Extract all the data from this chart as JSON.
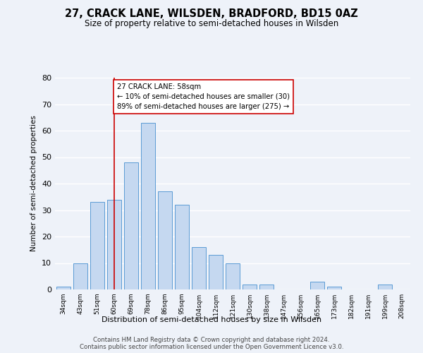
{
  "title": "27, CRACK LANE, WILSDEN, BRADFORD, BD15 0AZ",
  "subtitle": "Size of property relative to semi-detached houses in Wilsden",
  "xlabel": "Distribution of semi-detached houses by size in Wilsden",
  "ylabel": "Number of semi-detached properties",
  "bar_labels": [
    "34sqm",
    "43sqm",
    "51sqm",
    "60sqm",
    "69sqm",
    "78sqm",
    "86sqm",
    "95sqm",
    "104sqm",
    "112sqm",
    "121sqm",
    "130sqm",
    "138sqm",
    "147sqm",
    "156sqm",
    "165sqm",
    "173sqm",
    "182sqm",
    "191sqm",
    "199sqm",
    "208sqm"
  ],
  "bar_values": [
    1,
    10,
    33,
    34,
    48,
    63,
    37,
    32,
    16,
    13,
    10,
    2,
    2,
    0,
    0,
    3,
    1,
    0,
    0,
    2,
    0
  ],
  "bar_color": "#c5d8f0",
  "bar_edge_color": "#5b9bd5",
  "annotation_line_x_label": "60sqm",
  "annotation_box_text": "27 CRACK LANE: 58sqm\n← 10% of semi-detached houses are smaller (30)\n89% of semi-detached houses are larger (275) →",
  "ylim": [
    0,
    80
  ],
  "yticks": [
    0,
    10,
    20,
    30,
    40,
    50,
    60,
    70,
    80
  ],
  "vline_color": "#cc0000",
  "background_color": "#eef2f9",
  "footer_line1": "Contains HM Land Registry data © Crown copyright and database right 2024.",
  "footer_line2": "Contains public sector information licensed under the Open Government Licence v3.0."
}
